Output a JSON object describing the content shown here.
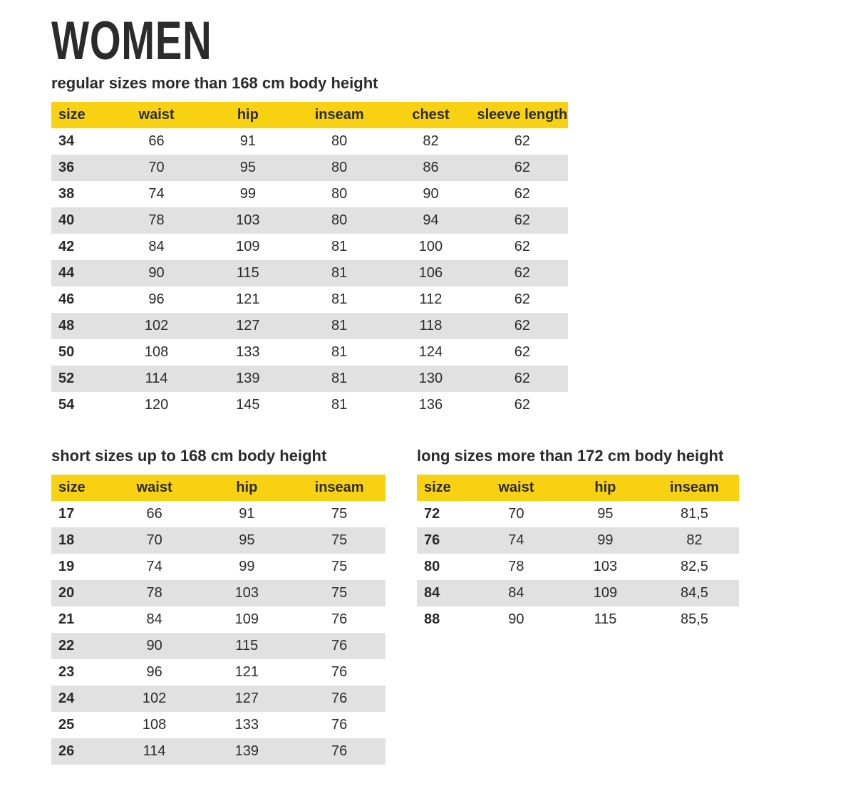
{
  "page": {
    "title": "WOMEN"
  },
  "colors": {
    "accent_yellow": "#F7D112",
    "row_stripe_gray": "#E1E1E1",
    "text_dark": "#2B2B2B"
  },
  "tables": {
    "regular": {
      "subtitle": "regular sizes more than 168 cm body height",
      "columns": [
        "size",
        "waist",
        "hip",
        "inseam",
        "chest",
        "sleeve length"
      ],
      "rows": [
        [
          "34",
          "66",
          "91",
          "80",
          "82",
          "62"
        ],
        [
          "36",
          "70",
          "95",
          "80",
          "86",
          "62"
        ],
        [
          "38",
          "74",
          "99",
          "80",
          "90",
          "62"
        ],
        [
          "40",
          "78",
          "103",
          "80",
          "94",
          "62"
        ],
        [
          "42",
          "84",
          "109",
          "81",
          "100",
          "62"
        ],
        [
          "44",
          "90",
          "115",
          "81",
          "106",
          "62"
        ],
        [
          "46",
          "96",
          "121",
          "81",
          "112",
          "62"
        ],
        [
          "48",
          "102",
          "127",
          "81",
          "118",
          "62"
        ],
        [
          "50",
          "108",
          "133",
          "81",
          "124",
          "62"
        ],
        [
          "52",
          "114",
          "139",
          "81",
          "130",
          "62"
        ],
        [
          "54",
          "120",
          "145",
          "81",
          "136",
          "62"
        ]
      ]
    },
    "short": {
      "subtitle": "short sizes up to 168 cm body height",
      "columns": [
        "size",
        "waist",
        "hip",
        "inseam"
      ],
      "rows": [
        [
          "17",
          "66",
          "91",
          "75"
        ],
        [
          "18",
          "70",
          "95",
          "75"
        ],
        [
          "19",
          "74",
          "99",
          "75"
        ],
        [
          "20",
          "78",
          "103",
          "75"
        ],
        [
          "21",
          "84",
          "109",
          "76"
        ],
        [
          "22",
          "90",
          "115",
          "76"
        ],
        [
          "23",
          "96",
          "121",
          "76"
        ],
        [
          "24",
          "102",
          "127",
          "76"
        ],
        [
          "25",
          "108",
          "133",
          "76"
        ],
        [
          "26",
          "114",
          "139",
          "76"
        ]
      ]
    },
    "long": {
      "subtitle": "long sizes more than 172 cm body height",
      "columns": [
        "size",
        "waist",
        "hip",
        "inseam"
      ],
      "rows": [
        [
          "72",
          "70",
          "95",
          "81,5"
        ],
        [
          "76",
          "74",
          "99",
          "82"
        ],
        [
          "80",
          "78",
          "103",
          "82,5"
        ],
        [
          "84",
          "84",
          "109",
          "84,5"
        ],
        [
          "88",
          "90",
          "115",
          "85,5"
        ]
      ]
    }
  }
}
